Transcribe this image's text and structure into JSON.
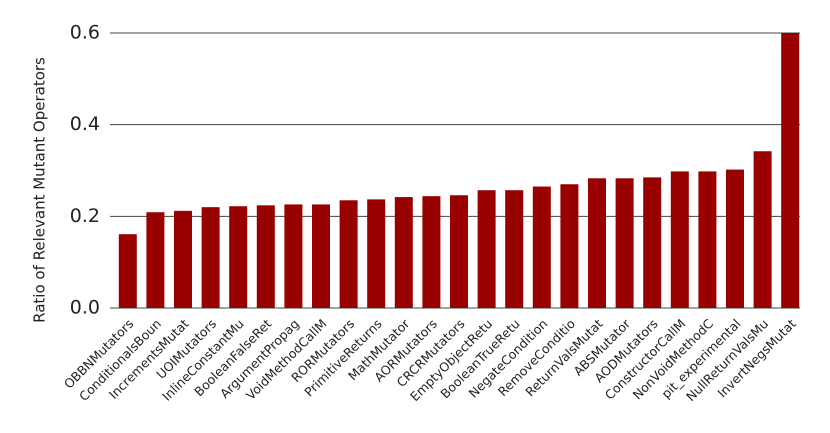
{
  "chart_data": {
    "type": "bar",
    "y_label": "Ratio of Relevant Mutant Operators",
    "categories": [
      "OBBNMutators",
      "ConditionalsBoun",
      "IncrementsMutat",
      "UOIMutators",
      "InlineConstantMu",
      "BooleanFalseRet",
      "ArgumentPropag",
      "VoidMethodCallM",
      "RORMutators",
      "PrimitiveReturns",
      "MathMutator",
      "AORMutators",
      "CRCRMutators",
      "EmptyObjectRetu",
      "BooleanTrueRetu",
      "NegateCondition",
      "RemoveConditio",
      "ReturnValsMutat",
      "ABSMutator",
      "AODMutators",
      "ConstructorCallM",
      "NonVoidMethodC",
      "pit_experimental",
      "NullReturnValsMu",
      "InvertNegsMutat"
    ],
    "values": [
      0.161,
      0.209,
      0.212,
      0.22,
      0.222,
      0.224,
      0.226,
      0.226,
      0.235,
      0.237,
      0.242,
      0.244,
      0.246,
      0.257,
      0.257,
      0.265,
      0.27,
      0.283,
      0.283,
      0.285,
      0.298,
      0.298,
      0.302,
      0.342,
      0.6
    ],
    "color": "#990000",
    "ylim": [
      0,
      0.6
    ],
    "yticks": [
      {
        "value": 0,
        "label": "0.0"
      },
      0.2,
      0.4,
      0.6
    ],
    "grid": true
  }
}
